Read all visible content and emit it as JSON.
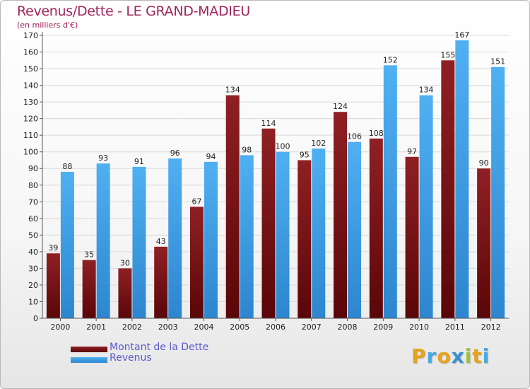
{
  "title": "Revenus/Dette - LE GRAND-MADIEU",
  "subtitle": "(en milliers d'€)",
  "logo_letters": [
    "P",
    "r",
    "o",
    "x",
    "i",
    "t",
    "i"
  ],
  "logo_colors": [
    "#e8a21c",
    "#4aa8e0",
    "#e8a21c",
    "#3a8fd0",
    "#9bc43a",
    "#e8a21c",
    "#4aa8e0"
  ],
  "chart_data": {
    "type": "bar",
    "categories": [
      "2000",
      "2001",
      "2002",
      "2003",
      "2004",
      "2005",
      "2006",
      "2007",
      "2008",
      "2009",
      "2010",
      "2011",
      "2012"
    ],
    "series": [
      {
        "name": "Montant de la Dette",
        "color": "#7a1618",
        "values": [
          39,
          35,
          30,
          43,
          67,
          134,
          114,
          95,
          124,
          108,
          97,
          155,
          90
        ]
      },
      {
        "name": "Revenus",
        "color": "#3d9be3",
        "values": [
          88,
          93,
          91,
          96,
          94,
          98,
          100,
          102,
          106,
          152,
          134,
          167,
          151
        ]
      }
    ],
    "ylim": [
      0,
      170
    ],
    "ytick_step": 10,
    "grid": true,
    "legend": "bottom-left"
  }
}
